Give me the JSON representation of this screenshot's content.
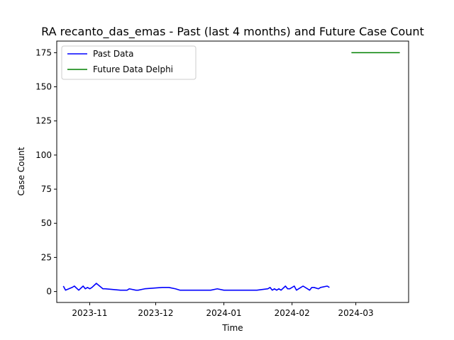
{
  "chart_data": {
    "type": "line",
    "title": "RA recanto_das_emas - Past (last 4 months) and Future Case Count",
    "xlabel": "Time",
    "ylabel": "Case Count",
    "xlim": [
      "2023-10-17",
      "2024-03-25"
    ],
    "ylim": [
      -8,
      183.5
    ],
    "x_ticks": [
      "2023-11-01",
      "2023-12-01",
      "2024-01-01",
      "2024-02-01",
      "2024-03-01"
    ],
    "x_tick_labels": [
      "2023-11",
      "2023-12",
      "2024-01",
      "2024-02",
      "2024-03"
    ],
    "y_ticks": [
      0,
      25,
      50,
      75,
      100,
      125,
      150,
      175
    ],
    "y_tick_labels": [
      "0",
      "25",
      "50",
      "75",
      "100",
      "125",
      "150",
      "175"
    ],
    "grid": false,
    "legend_position": "top-left",
    "series": [
      {
        "name": "Past Data",
        "color": "#0000ff",
        "x": [
          "2023-10-20",
          "2023-10-21",
          "2023-10-24",
          "2023-10-25",
          "2023-10-27",
          "2023-10-29",
          "2023-10-30",
          "2023-10-31",
          "2023-11-01",
          "2023-11-02",
          "2023-11-04",
          "2023-11-07",
          "2023-11-08",
          "2023-11-15",
          "2023-11-16",
          "2023-11-17",
          "2023-11-18",
          "2023-11-19",
          "2023-11-22",
          "2023-11-23",
          "2023-11-26",
          "2023-12-04",
          "2023-12-07",
          "2023-12-10",
          "2023-12-12",
          "2023-12-13",
          "2023-12-17",
          "2023-12-20",
          "2023-12-26",
          "2023-12-29",
          "2024-01-01",
          "2024-01-04",
          "2024-01-10",
          "2024-01-16",
          "2024-01-21",
          "2024-01-22",
          "2024-01-23",
          "2024-01-24",
          "2024-01-25",
          "2024-01-26",
          "2024-01-27",
          "2024-01-29",
          "2024-01-30",
          "2024-01-31",
          "2024-02-02",
          "2024-02-03",
          "2024-02-04",
          "2024-02-05",
          "2024-02-06",
          "2024-02-08",
          "2024-02-09",
          "2024-02-10",
          "2024-02-11",
          "2024-02-13",
          "2024-02-14",
          "2024-02-17",
          "2024-02-18"
        ],
        "values": [
          4,
          1,
          3,
          4,
          1,
          4,
          2,
          3,
          2,
          3,
          6,
          2,
          2,
          1,
          1,
          1,
          1,
          2,
          1,
          1,
          2,
          3,
          3,
          2,
          1,
          1,
          1,
          1,
          1,
          2,
          1,
          1,
          1,
          1,
          2,
          3,
          1,
          2,
          1,
          2,
          1,
          4,
          2,
          2,
          4,
          1,
          2,
          3,
          4,
          2,
          1,
          3,
          3,
          2,
          3,
          4,
          3
        ]
      },
      {
        "name": "Future Data Delphi",
        "color": "#008000",
        "x": [
          "2024-02-28",
          "2024-03-21"
        ],
        "values": [
          175,
          175
        ]
      }
    ]
  }
}
